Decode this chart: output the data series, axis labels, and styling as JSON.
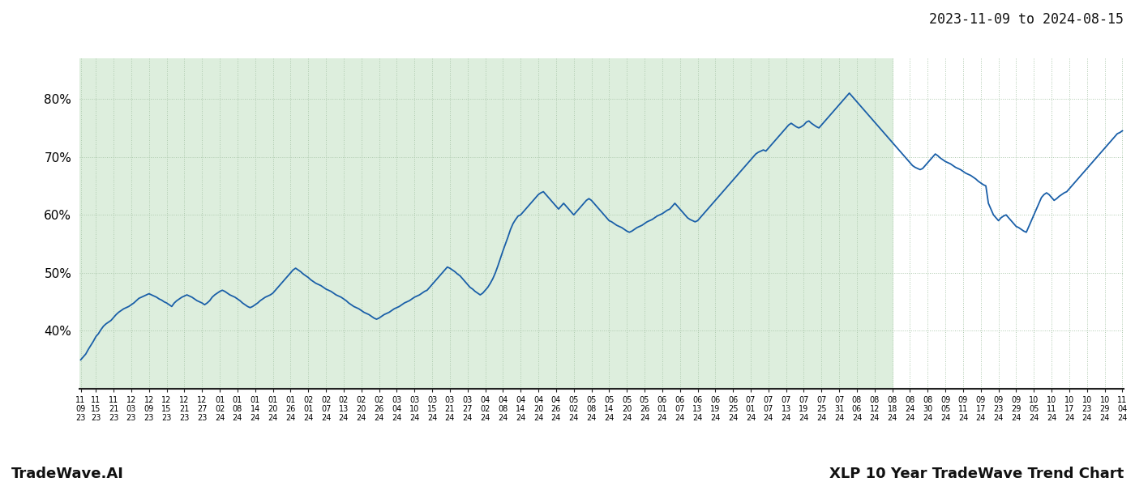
{
  "title_date_range": "2023-11-09 to 2024-08-15",
  "footer_left": "TradeWave.AI",
  "footer_right": "XLP 10 Year TradeWave Trend Chart",
  "background_color": "#ffffff",
  "shaded_region_color": "#ddeedd",
  "line_color": "#1a5fa8",
  "line_width": 1.3,
  "grid_color": "#adc9ad",
  "grid_style": ":",
  "ytick_labels": [
    "40%",
    "50%",
    "60%",
    "70%",
    "80%"
  ],
  "ytick_values": [
    40,
    50,
    60,
    70,
    80
  ],
  "ylim": [
    30,
    87
  ],
  "figsize": [
    14.0,
    6.0
  ],
  "dpi": 100,
  "x_tick_labels": [
    "11-09",
    "11-15",
    "11-21",
    "12-03",
    "12-09",
    "12-15",
    "12-21",
    "12-27",
    "01-02",
    "01-08",
    "01-14",
    "01-20",
    "01-26",
    "02-01",
    "02-07",
    "02-13",
    "02-20",
    "02-26",
    "03-04",
    "03-10",
    "03-15",
    "03-21",
    "03-27",
    "04-02",
    "04-08",
    "04-14",
    "04-20",
    "04-26",
    "05-02",
    "05-08",
    "05-14",
    "05-20",
    "05-26",
    "06-01",
    "06-07",
    "06-13",
    "06-19",
    "06-25",
    "07-01",
    "07-07",
    "07-13",
    "07-19",
    "07-25",
    "07-31",
    "08-06",
    "08-12",
    "08-18",
    "08-24",
    "08-30",
    "09-05",
    "09-11",
    "09-17",
    "09-23",
    "09-29",
    "10-05",
    "10-11",
    "10-17",
    "10-23",
    "10-29",
    "11-04"
  ],
  "x_tick_years": [
    "2023",
    "2023",
    "2023",
    "2023",
    "2023",
    "2023",
    "2023",
    "2023",
    "2024",
    "2024",
    "2024",
    "2024",
    "2024",
    "2024",
    "2024",
    "2024",
    "2024",
    "2024",
    "2024",
    "2024",
    "2024",
    "2024",
    "2024",
    "2024",
    "2024",
    "2024",
    "2024",
    "2024",
    "2024",
    "2024",
    "2024",
    "2024",
    "2024",
    "2024",
    "2024",
    "2024",
    "2024",
    "2024",
    "2024",
    "2024",
    "2024",
    "2024",
    "2024",
    "2024",
    "2024",
    "2024",
    "2024",
    "2024",
    "2024",
    "2024",
    "2024",
    "2024",
    "2024",
    "2024",
    "2024",
    "2024",
    "2024",
    "2024",
    "2024",
    "2024"
  ],
  "shaded_end_label": "08-18",
  "y_values": [
    35.0,
    35.5,
    36.0,
    36.8,
    37.5,
    38.2,
    39.0,
    39.5,
    40.2,
    40.8,
    41.2,
    41.5,
    41.8,
    42.3,
    42.8,
    43.2,
    43.5,
    43.8,
    44.0,
    44.2,
    44.5,
    44.8,
    45.2,
    45.6,
    45.8,
    46.0,
    46.2,
    46.4,
    46.2,
    46.0,
    45.8,
    45.5,
    45.3,
    45.0,
    44.8,
    44.5,
    44.2,
    44.8,
    45.2,
    45.5,
    45.8,
    46.0,
    46.2,
    46.0,
    45.8,
    45.5,
    45.2,
    45.0,
    44.8,
    44.5,
    44.8,
    45.2,
    45.8,
    46.2,
    46.5,
    46.8,
    47.0,
    46.8,
    46.5,
    46.2,
    46.0,
    45.8,
    45.5,
    45.2,
    44.8,
    44.5,
    44.2,
    44.0,
    44.2,
    44.5,
    44.8,
    45.2,
    45.5,
    45.8,
    46.0,
    46.2,
    46.5,
    47.0,
    47.5,
    48.0,
    48.5,
    49.0,
    49.5,
    50.0,
    50.5,
    50.8,
    50.5,
    50.2,
    49.8,
    49.5,
    49.2,
    48.8,
    48.5,
    48.2,
    48.0,
    47.8,
    47.5,
    47.2,
    47.0,
    46.8,
    46.5,
    46.2,
    46.0,
    45.8,
    45.5,
    45.2,
    44.8,
    44.5,
    44.2,
    44.0,
    43.8,
    43.5,
    43.2,
    43.0,
    42.8,
    42.5,
    42.2,
    42.0,
    42.2,
    42.5,
    42.8,
    43.0,
    43.2,
    43.5,
    43.8,
    44.0,
    44.2,
    44.5,
    44.8,
    45.0,
    45.2,
    45.5,
    45.8,
    46.0,
    46.2,
    46.5,
    46.8,
    47.0,
    47.5,
    48.0,
    48.5,
    49.0,
    49.5,
    50.0,
    50.5,
    51.0,
    50.8,
    50.5,
    50.2,
    49.8,
    49.5,
    49.0,
    48.5,
    48.0,
    47.5,
    47.2,
    46.8,
    46.5,
    46.2,
    46.5,
    47.0,
    47.5,
    48.2,
    49.0,
    50.0,
    51.2,
    52.5,
    53.8,
    55.0,
    56.2,
    57.5,
    58.5,
    59.2,
    59.8,
    60.0,
    60.5,
    61.0,
    61.5,
    62.0,
    62.5,
    63.0,
    63.5,
    63.8,
    64.0,
    63.5,
    63.0,
    62.5,
    62.0,
    61.5,
    61.0,
    61.5,
    62.0,
    61.5,
    61.0,
    60.5,
    60.0,
    60.5,
    61.0,
    61.5,
    62.0,
    62.5,
    62.8,
    62.5,
    62.0,
    61.5,
    61.0,
    60.5,
    60.0,
    59.5,
    59.0,
    58.8,
    58.5,
    58.2,
    58.0,
    57.8,
    57.5,
    57.2,
    57.0,
    57.2,
    57.5,
    57.8,
    58.0,
    58.2,
    58.5,
    58.8,
    59.0,
    59.2,
    59.5,
    59.8,
    60.0,
    60.2,
    60.5,
    60.8,
    61.0,
    61.5,
    62.0,
    61.5,
    61.0,
    60.5,
    60.0,
    59.5,
    59.2,
    59.0,
    58.8,
    59.0,
    59.5,
    60.0,
    60.5,
    61.0,
    61.5,
    62.0,
    62.5,
    63.0,
    63.5,
    64.0,
    64.5,
    65.0,
    65.5,
    66.0,
    66.5,
    67.0,
    67.5,
    68.0,
    68.5,
    69.0,
    69.5,
    70.0,
    70.5,
    70.8,
    71.0,
    71.2,
    71.0,
    71.5,
    72.0,
    72.5,
    73.0,
    73.5,
    74.0,
    74.5,
    75.0,
    75.5,
    75.8,
    75.5,
    75.2,
    75.0,
    75.2,
    75.5,
    76.0,
    76.2,
    75.8,
    75.5,
    75.2,
    75.0,
    75.5,
    76.0,
    76.5,
    77.0,
    77.5,
    78.0,
    78.5,
    79.0,
    79.5,
    80.0,
    80.5,
    81.0,
    80.5,
    80.0,
    79.5,
    79.0,
    78.5,
    78.0,
    77.5,
    77.0,
    76.5,
    76.0,
    75.5,
    75.0,
    74.5,
    74.0,
    73.5,
    73.0,
    72.5,
    72.0,
    71.5,
    71.0,
    70.5,
    70.0,
    69.5,
    69.0,
    68.5,
    68.2,
    68.0,
    67.8,
    68.0,
    68.5,
    69.0,
    69.5,
    70.0,
    70.5,
    70.2,
    69.8,
    69.5,
    69.2,
    69.0,
    68.8,
    68.5,
    68.2,
    68.0,
    67.8,
    67.5,
    67.2,
    67.0,
    66.8,
    66.5,
    66.2,
    65.8,
    65.5,
    65.2,
    65.0,
    62.0,
    61.0,
    60.0,
    59.5,
    59.0,
    59.5,
    59.8,
    60.0,
    59.5,
    59.0,
    58.5,
    58.0,
    57.8,
    57.5,
    57.2,
    57.0,
    58.0,
    59.0,
    60.0,
    61.0,
    62.0,
    63.0,
    63.5,
    63.8,
    63.5,
    63.0,
    62.5,
    62.8,
    63.2,
    63.5,
    63.8,
    64.0,
    64.5,
    65.0,
    65.5,
    66.0,
    66.5,
    67.0,
    67.5,
    68.0,
    68.5,
    69.0,
    69.5,
    70.0,
    70.5,
    71.0,
    71.5,
    72.0,
    72.5,
    73.0,
    73.5,
    74.0,
    74.2,
    74.5
  ]
}
